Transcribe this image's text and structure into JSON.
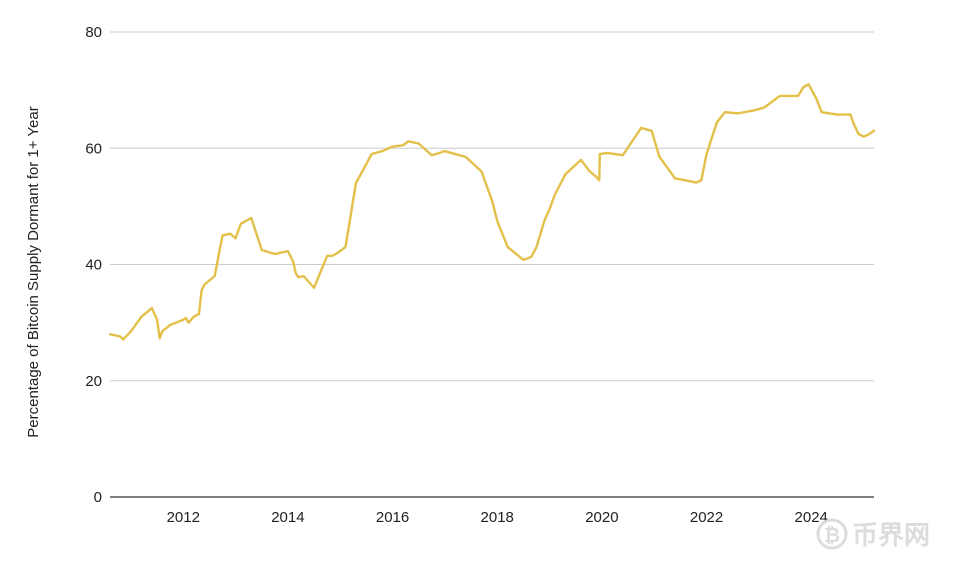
{
  "chart_data": {
    "type": "line",
    "title": "",
    "xlabel": "",
    "ylabel": "Percentage of Bitcoin Supply Dormant for 1+ Year",
    "xlim": [
      2010.6,
      2025.2
    ],
    "ylim": [
      0,
      80
    ],
    "grid": true,
    "legend": "none",
    "x_ticks": [
      "2012",
      "2014",
      "2016",
      "2018",
      "2020",
      "2022",
      "2024"
    ],
    "y_ticks": [
      "0",
      "20",
      "40",
      "60",
      "80"
    ],
    "colors": {
      "line": "#e3c04a",
      "grid": "#cccccc",
      "axis": "#333333",
      "watermark": "#d9d9d9"
    },
    "series": [
      {
        "name": "",
        "x": [
          2010.6,
          2010.8,
          2010.85,
          2011.0,
          2011.2,
          2011.4,
          2011.5,
          2011.55,
          2011.6,
          2011.75,
          2012.0,
          2012.05,
          2012.1,
          2012.2,
          2012.3,
          2012.35,
          2012.4,
          2012.6,
          2012.75,
          2012.9,
          2013.0,
          2013.1,
          2013.3,
          2013.5,
          2013.75,
          2013.95,
          2014.0,
          2014.1,
          2014.15,
          2014.2,
          2014.3,
          2014.5,
          2014.75,
          2014.85,
          2014.95,
          2015.1,
          2015.3,
          2015.6,
          2015.8,
          2016.0,
          2016.2,
          2016.3,
          2016.5,
          2016.75,
          2017.0,
          2017.4,
          2017.7,
          2017.9,
          2018.0,
          2018.2,
          2018.5,
          2018.65,
          2018.75,
          2018.9,
          2019.0,
          2019.1,
          2019.3,
          2019.6,
          2019.75,
          2019.9,
          2019.95,
          2019.96,
          2020.1,
          2020.4,
          2020.6,
          2020.75,
          2020.95,
          2021.1,
          2021.4,
          2021.7,
          2021.8,
          2021.9,
          2022.0,
          2022.2,
          2022.35,
          2022.6,
          2022.9,
          2023.1,
          2023.25,
          2023.4,
          2023.75,
          2023.85,
          2023.95,
          2024.1,
          2024.2,
          2024.5,
          2024.75,
          2024.8,
          2024.9,
          2025.0,
          2025.1,
          2025.2
        ],
        "values": [
          28,
          27.6,
          27.1,
          28.5,
          31,
          32.5,
          30.5,
          27.3,
          28.5,
          29.6,
          30.5,
          30.8,
          30,
          31,
          31.5,
          35.5,
          36.5,
          38,
          45,
          45.3,
          44.5,
          47,
          48,
          42.5,
          41.8,
          42.2,
          42.3,
          40.5,
          38.5,
          37.8,
          38,
          36,
          41.5,
          41.5,
          42,
          43,
          54,
          59,
          59.5,
          60.3,
          60.5,
          61.2,
          60.8,
          58.8,
          59.5,
          58.5,
          56,
          51,
          47.5,
          43,
          40.8,
          41.3,
          43,
          47.5,
          49.5,
          52,
          55.5,
          58,
          56.2,
          55,
          54.5,
          59,
          59.2,
          58.8,
          61.5,
          63.5,
          63,
          58.5,
          54.8,
          54.3,
          54.1,
          54.5,
          59,
          64.5,
          66.2,
          66,
          66.5,
          67,
          68,
          69,
          69,
          70.5,
          71,
          68.5,
          66.2,
          65.8,
          65.8,
          64.5,
          62.5,
          62,
          62.4,
          63
        ]
      }
    ]
  },
  "watermark": {
    "text": "币界网",
    "icon": "bitcoin-logo-icon"
  }
}
